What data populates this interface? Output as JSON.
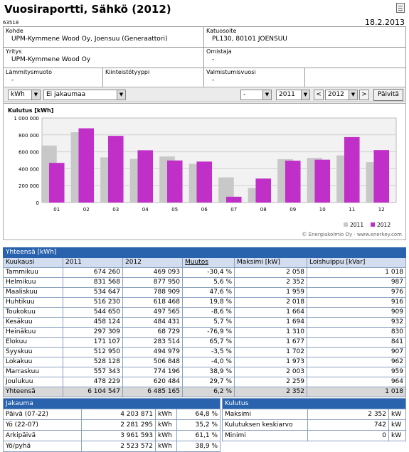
{
  "header": {
    "title": "Vuosiraportti, Sähkö (2012)",
    "report_id": "63518",
    "date": "18.2.2013"
  },
  "info": {
    "kohde_label": "Kohde",
    "kohde_value": "UPM-Kymmene Wood Oy, Joensuu (Generaattori)",
    "katuosoite_label": "Katuosoite",
    "katuosoite_value": "PL130, 80101 JOENSUU",
    "yritys_label": "Yritys",
    "yritys_value": "UPM-Kymmene Wood Oy",
    "omistaja_label": "Omistaja",
    "omistaja_value": "-",
    "lammitysmuoto_label": "Lämmitysmuoto",
    "lammitysmuoto_value": "-",
    "kiinteistotyyppi_label": "Kiinteistötyyppi",
    "kiinteistotyyppi_value": "",
    "valmistumisvuosi_label": "Valmistumisvuosi",
    "valmistumisvuosi_value": "-"
  },
  "toolbar": {
    "unit": "kWh",
    "distribution": "Ei jakaumaa",
    "blank_select": "-",
    "compare_year": "2011",
    "year": "2012",
    "prev": "<",
    "next": ">",
    "refresh": "Päivitä"
  },
  "chart_data": {
    "type": "bar",
    "title": "Kulutus [kWh]",
    "categories": [
      "01",
      "02",
      "03",
      "04",
      "05",
      "06",
      "07",
      "08",
      "09",
      "10",
      "11",
      "12"
    ],
    "series": [
      {
        "name": "2011",
        "color": "#c8c8c8",
        "values": [
          674260,
          831568,
          534647,
          516230,
          544650,
          458124,
          297309,
          171107,
          512950,
          528128,
          557343,
          478229
        ]
      },
      {
        "name": "2012",
        "color": "#c030c8",
        "values": [
          469093,
          877950,
          788909,
          618468,
          497565,
          484431,
          68729,
          283514,
          494979,
          506848,
          774196,
          620484
        ]
      }
    ],
    "yticks": [
      "0",
      "200 000",
      "400 000",
      "600 000",
      "800 000",
      "1 000 000"
    ],
    "ylim": [
      0,
      1000000
    ],
    "grid": true,
    "legend": "bottom-right",
    "copyright": "© Energiakolmio Oy · www.enerkey.com"
  },
  "table": {
    "section_title": "Yhteensä [kWh]",
    "headers": [
      "Kuukausi",
      "2011",
      "2012",
      "Muutos",
      "Maksimi [kW]",
      "Loishuippu [kVar]"
    ],
    "rows": [
      [
        "Tammikuu",
        "674 260",
        "469 093",
        "-30,4 %",
        "2 058",
        "1 018"
      ],
      [
        "Helmikuu",
        "831 568",
        "877 950",
        "5,6 %",
        "2 352",
        "987"
      ],
      [
        "Maaliskuu",
        "534 647",
        "788 909",
        "47,6 %",
        "1 959",
        "976"
      ],
      [
        "Huhtikuu",
        "516 230",
        "618 468",
        "19,8 %",
        "2 018",
        "916"
      ],
      [
        "Toukokuu",
        "544 650",
        "497 565",
        "-8,6 %",
        "1 664",
        "909"
      ],
      [
        "Kesäkuu",
        "458 124",
        "484 431",
        "5,7 %",
        "1 694",
        "932"
      ],
      [
        "Heinäkuu",
        "297 309",
        "68 729",
        "-76,9 %",
        "1 310",
        "830"
      ],
      [
        "Elokuu",
        "171 107",
        "283 514",
        "65,7 %",
        "1 677",
        "841"
      ],
      [
        "Syyskuu",
        "512 950",
        "494 979",
        "-3,5 %",
        "1 702",
        "907"
      ],
      [
        "Lokakuu",
        "528 128",
        "506 848",
        "-4,0 %",
        "1 973",
        "962"
      ],
      [
        "Marraskuu",
        "557 343",
        "774 196",
        "38,9 %",
        "2 003",
        "959"
      ],
      [
        "Joulukuu",
        "478 229",
        "620 484",
        "29,7 %",
        "2 259",
        "964"
      ]
    ],
    "total": [
      "Yhteensä",
      "6 104 547",
      "6 485 165",
      "6,2 %",
      "2 352",
      "1 018"
    ]
  },
  "jakauma": {
    "title": "Jakauma",
    "rows": [
      [
        "Päivä (07-22)",
        "4 203 871",
        "kWh",
        "64,8 %"
      ],
      [
        "Yö (22-07)",
        "2 281 295",
        "kWh",
        "35,2 %"
      ],
      [
        "Arkipäivä",
        "3 961 593",
        "kWh",
        "61,1 %"
      ],
      [
        "Yö/pyhä",
        "2 523 572",
        "kWh",
        "38,9 %"
      ]
    ]
  },
  "kulutus": {
    "title": "Kulutus",
    "rows": [
      [
        "Maksimi",
        "2 352",
        "kW"
      ],
      [
        "Kulutuksen keskiarvo",
        "742",
        "kW"
      ],
      [
        "Minimi",
        "0",
        "kW"
      ]
    ]
  }
}
